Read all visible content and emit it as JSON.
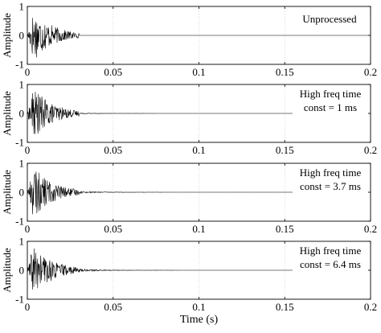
{
  "chart_data": [
    {
      "type": "line",
      "xlabel": "",
      "ylabel": "Amplitude",
      "xlim": [
        0,
        0.2
      ],
      "ylim": [
        -1,
        1
      ],
      "xticks": [
        "0",
        "0.05",
        "0.1",
        "0.15",
        "0.2"
      ],
      "yticks": [
        "-1",
        "0",
        "1"
      ],
      "grid": true,
      "annotation": [
        "Unprocessed"
      ],
      "signal": {
        "burst_end": 0.03,
        "peak_amplitude": 0.9,
        "residual_amplitude": 0
      }
    },
    {
      "type": "line",
      "xlabel": "",
      "ylabel": "Amplitude",
      "xlim": [
        0,
        0.2
      ],
      "ylim": [
        -1,
        1
      ],
      "xticks": [
        "0",
        "0.05",
        "0.1",
        "0.15",
        "0.2"
      ],
      "yticks": [
        "-1",
        "0",
        "1"
      ],
      "grid": true,
      "annotation": [
        "High freq time",
        "const = 1 ms"
      ],
      "signal": {
        "burst_end": 0.03,
        "peak_amplitude": 0.9,
        "residual_amplitude": 0.02
      }
    },
    {
      "type": "line",
      "xlabel": "",
      "ylabel": "Amplitude",
      "xlim": [
        0,
        0.2
      ],
      "ylim": [
        -1,
        1
      ],
      "xticks": [
        "0",
        "0.05",
        "0.1",
        "0.15",
        "0.2"
      ],
      "yticks": [
        "-1",
        "0",
        "1"
      ],
      "grid": true,
      "annotation": [
        "High freq time",
        "const = 3.7 ms"
      ],
      "signal": {
        "burst_end": 0.03,
        "peak_amplitude": 0.9,
        "residual_amplitude": 0.04
      }
    },
    {
      "type": "line",
      "xlabel": "Time (s)",
      "ylabel": "Amplitude",
      "xlim": [
        0,
        0.2
      ],
      "ylim": [
        -1,
        1
      ],
      "xticks": [
        "0",
        "0.05",
        "0.1",
        "0.15",
        "0.2"
      ],
      "yticks": [
        "-1",
        "0",
        "1"
      ],
      "grid": true,
      "annotation": [
        "High freq time",
        "const = 6.4 ms"
      ],
      "signal": {
        "burst_end": 0.03,
        "peak_amplitude": 0.9,
        "residual_amplitude": 0.06
      }
    }
  ]
}
